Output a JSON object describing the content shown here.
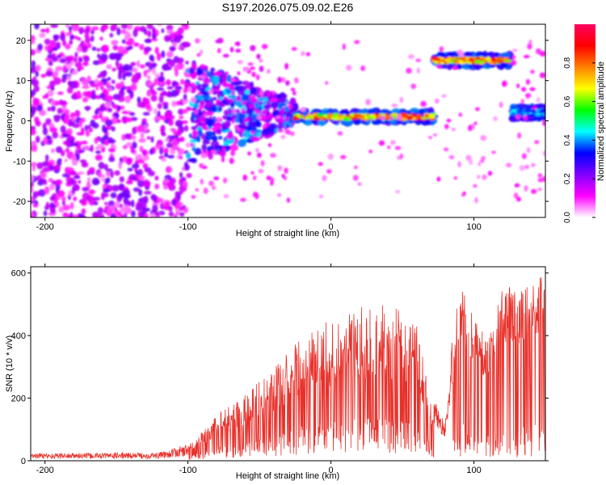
{
  "chart_data": [
    {
      "type": "heatmap",
      "title": "S197.2026.075.09.02.E26",
      "xlabel": "Height of straight line (km)",
      "ylabel": "Frequency (Hz)",
      "xlim": [
        -210,
        150
      ],
      "ylim": [
        -24,
        24
      ],
      "xticks": [
        -200,
        -100,
        0,
        100
      ],
      "xtick_labels": [
        "-200",
        "-100",
        "0",
        "100"
      ],
      "yticks": [
        -20,
        -10,
        0,
        10,
        20
      ],
      "ytick_labels": [
        "-20",
        "-10",
        "0",
        "10",
        "20"
      ],
      "colorbar": {
        "label": "Normalized spectral amplitude",
        "range": [
          0.0,
          1.0
        ],
        "ticks": [
          0.0,
          0.2,
          0.4,
          0.6,
          0.8
        ],
        "tick_labels": [
          "0.0",
          "0.2",
          "0.4",
          "0.6",
          "0.8"
        ],
        "colors": [
          "#ffffff",
          "#ff00ff",
          "#8000ff",
          "#0000ff",
          "#00ffff",
          "#00ff00",
          "#ffff00",
          "#ff8000",
          "#ff0000",
          "#ff0060"
        ]
      },
      "regions": [
        {
          "name": "noise",
          "x_range": [
            -210,
            -100
          ],
          "y_range": [
            -24,
            24
          ],
          "amplitude": 0.15
        },
        {
          "name": "transition",
          "x_range": [
            -100,
            -25
          ],
          "y_range": [
            -8,
            12
          ],
          "amplitude": 0.35
        },
        {
          "name": "line-near-zero",
          "x_range": [
            -25,
            72
          ],
          "y_center": 1,
          "amplitude": 0.9
        },
        {
          "name": "line-high",
          "x_range": [
            72,
            125
          ],
          "y_center": 15,
          "amplitude": 0.9
        },
        {
          "name": "line-near-zero-right",
          "x_range": [
            127,
            150
          ],
          "y_center": 2,
          "amplitude": 0.45
        }
      ]
    },
    {
      "type": "line",
      "title": "",
      "xlabel": "Height of straight line (km)",
      "ylabel": "SNR (10 * v/v)",
      "xlim": [
        -210,
        150
      ],
      "ylim": [
        0,
        620
      ],
      "xticks": [
        -200,
        -100,
        0,
        100
      ],
      "xtick_labels": [
        "-200",
        "-100",
        "0",
        "100"
      ],
      "yticks": [
        0,
        200,
        400,
        600
      ],
      "ytick_labels": [
        "0",
        "200",
        "400",
        "600"
      ],
      "color": "#e8312b",
      "envelope_x": [
        -210,
        -120,
        -100,
        -80,
        -60,
        -40,
        -20,
        0,
        20,
        40,
        60,
        70,
        80,
        90,
        100,
        110,
        120,
        130,
        140,
        150
      ],
      "envelope_y": [
        20,
        22,
        45,
        140,
        210,
        280,
        380,
        430,
        470,
        480,
        420,
        180,
        100,
        560,
        440,
        360,
        540,
        530,
        560,
        560
      ]
    }
  ]
}
